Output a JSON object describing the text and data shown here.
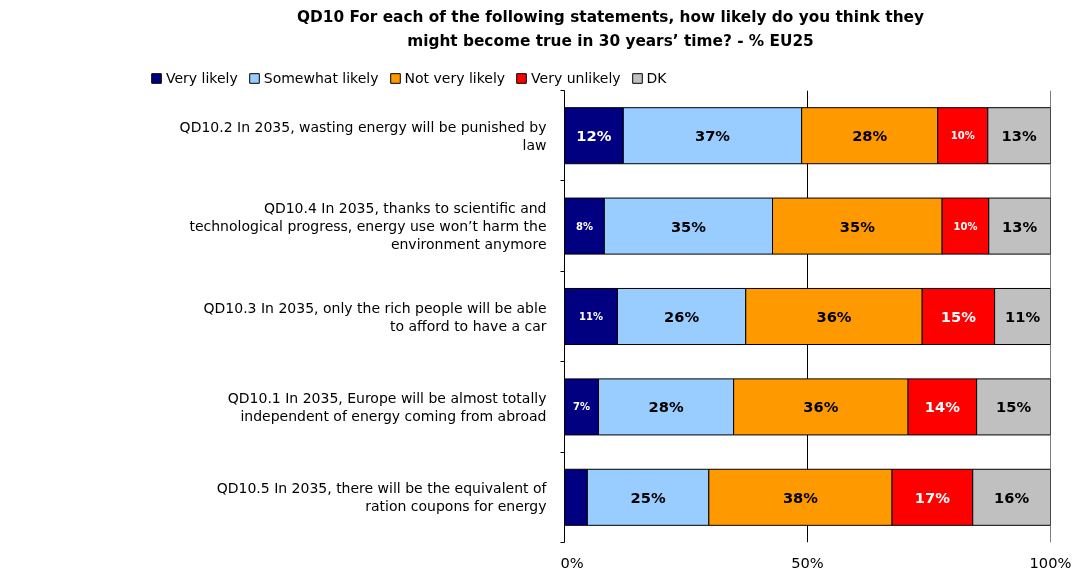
{
  "chart_data": {
    "type": "bar",
    "orientation": "horizontal",
    "stacked": true,
    "title": "QD10 For each of the following statements, how likely do you think they might become true in 30 years’ time? - % EU25",
    "categories": [
      "QD10.2 In 2035, wasting energy will be punished by law",
      "QD10.4 In 2035, thanks to scientific and technological progress, energy use won’t harm the environment anymore",
      "QD10.3 In 2035, only the rich people will be able to afford to have a car",
      "QD10.1 In 2035, Europe will be almost totally independent of energy coming from abroad",
      "QD10.5 In 2035, there will be the equivalent of ration coupons for energy"
    ],
    "series": [
      {
        "name": "Very likely",
        "color": "#000080",
        "values": [
          12.1,
          8.2,
          10.9,
          7.0,
          4.7
        ],
        "value_labels": [
          "12%",
          "8%",
          "11%",
          "7%",
          null
        ]
      },
      {
        "name": "Somewhat likely",
        "color": "#99ccff",
        "values": [
          36.7,
          34.6,
          26.4,
          27.8,
          25.0
        ],
        "value_labels": [
          "37%",
          "35%",
          "26%",
          "28%",
          "25%"
        ]
      },
      {
        "name": "Not very likely",
        "color": "#ff9900",
        "values": [
          28.0,
          34.9,
          36.3,
          35.9,
          37.7
        ],
        "value_labels": [
          "28%",
          "35%",
          "36%",
          "36%",
          "38%"
        ]
      },
      {
        "name": "Very unlikely",
        "color": "#ff0000",
        "values": [
          10.3,
          9.6,
          14.9,
          14.1,
          16.6
        ],
        "value_labels": [
          "10%",
          "10%",
          "15%",
          "14%",
          "17%"
        ]
      },
      {
        "name": "DK",
        "color": "#c0c0c0",
        "values": [
          12.9,
          12.7,
          11.5,
          15.2,
          16.0
        ],
        "value_labels": [
          "13%",
          "13%",
          "11%",
          "15%",
          "16%"
        ]
      }
    ],
    "xlim": [
      0,
      100
    ],
    "xticks": [
      {
        "value": 0,
        "label": "0%"
      },
      {
        "value": 50,
        "label": "50%"
      },
      {
        "value": 100,
        "label": "100%"
      }
    ],
    "grid": "x",
    "legend": "top"
  }
}
